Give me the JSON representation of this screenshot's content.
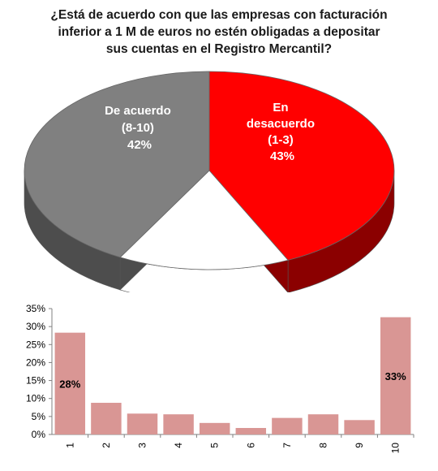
{
  "chart_data": [
    {
      "type": "pie",
      "title_lines": [
        "¿Está de acuerdo con que las empresas con facturación",
        "inferior a 1 M de euros no estén obligadas a depositar",
        "sus cuentas en el Registro Mercantil?"
      ],
      "slices": [
        {
          "label_lines": [
            "En",
            "desacuerdo",
            "(1-3)"
          ],
          "percent_label": "43%",
          "value": 43,
          "color": "#ff0000",
          "side_color": "#8b0000"
        },
        {
          "label_lines": [],
          "percent_label": "",
          "value": 15,
          "color": "#ffffff",
          "side_color": "#ffffff"
        },
        {
          "label_lines": [
            "De acuerdo",
            "(8-10)"
          ],
          "percent_label": "42%",
          "value": 42,
          "color": "#808080",
          "side_color": "#4d4d4d"
        }
      ]
    },
    {
      "type": "bar",
      "categories": [
        "1",
        "2",
        "3",
        "4",
        "5",
        "6",
        "7",
        "8",
        "9",
        "10"
      ],
      "values": [
        28.3,
        8.8,
        5.8,
        5.6,
        3.2,
        1.8,
        4.6,
        5.6,
        4.0,
        32.6
      ],
      "data_labels": [
        "28%",
        "",
        "",
        "",
        "",
        "",
        "",
        "",
        "",
        "33%"
      ],
      "ylim": [
        0,
        35
      ],
      "yticks": [
        "0%",
        "5%",
        "10%",
        "15%",
        "20%",
        "25%",
        "30%",
        "35%"
      ],
      "bar_color": "#d99694",
      "grid": false
    }
  ]
}
